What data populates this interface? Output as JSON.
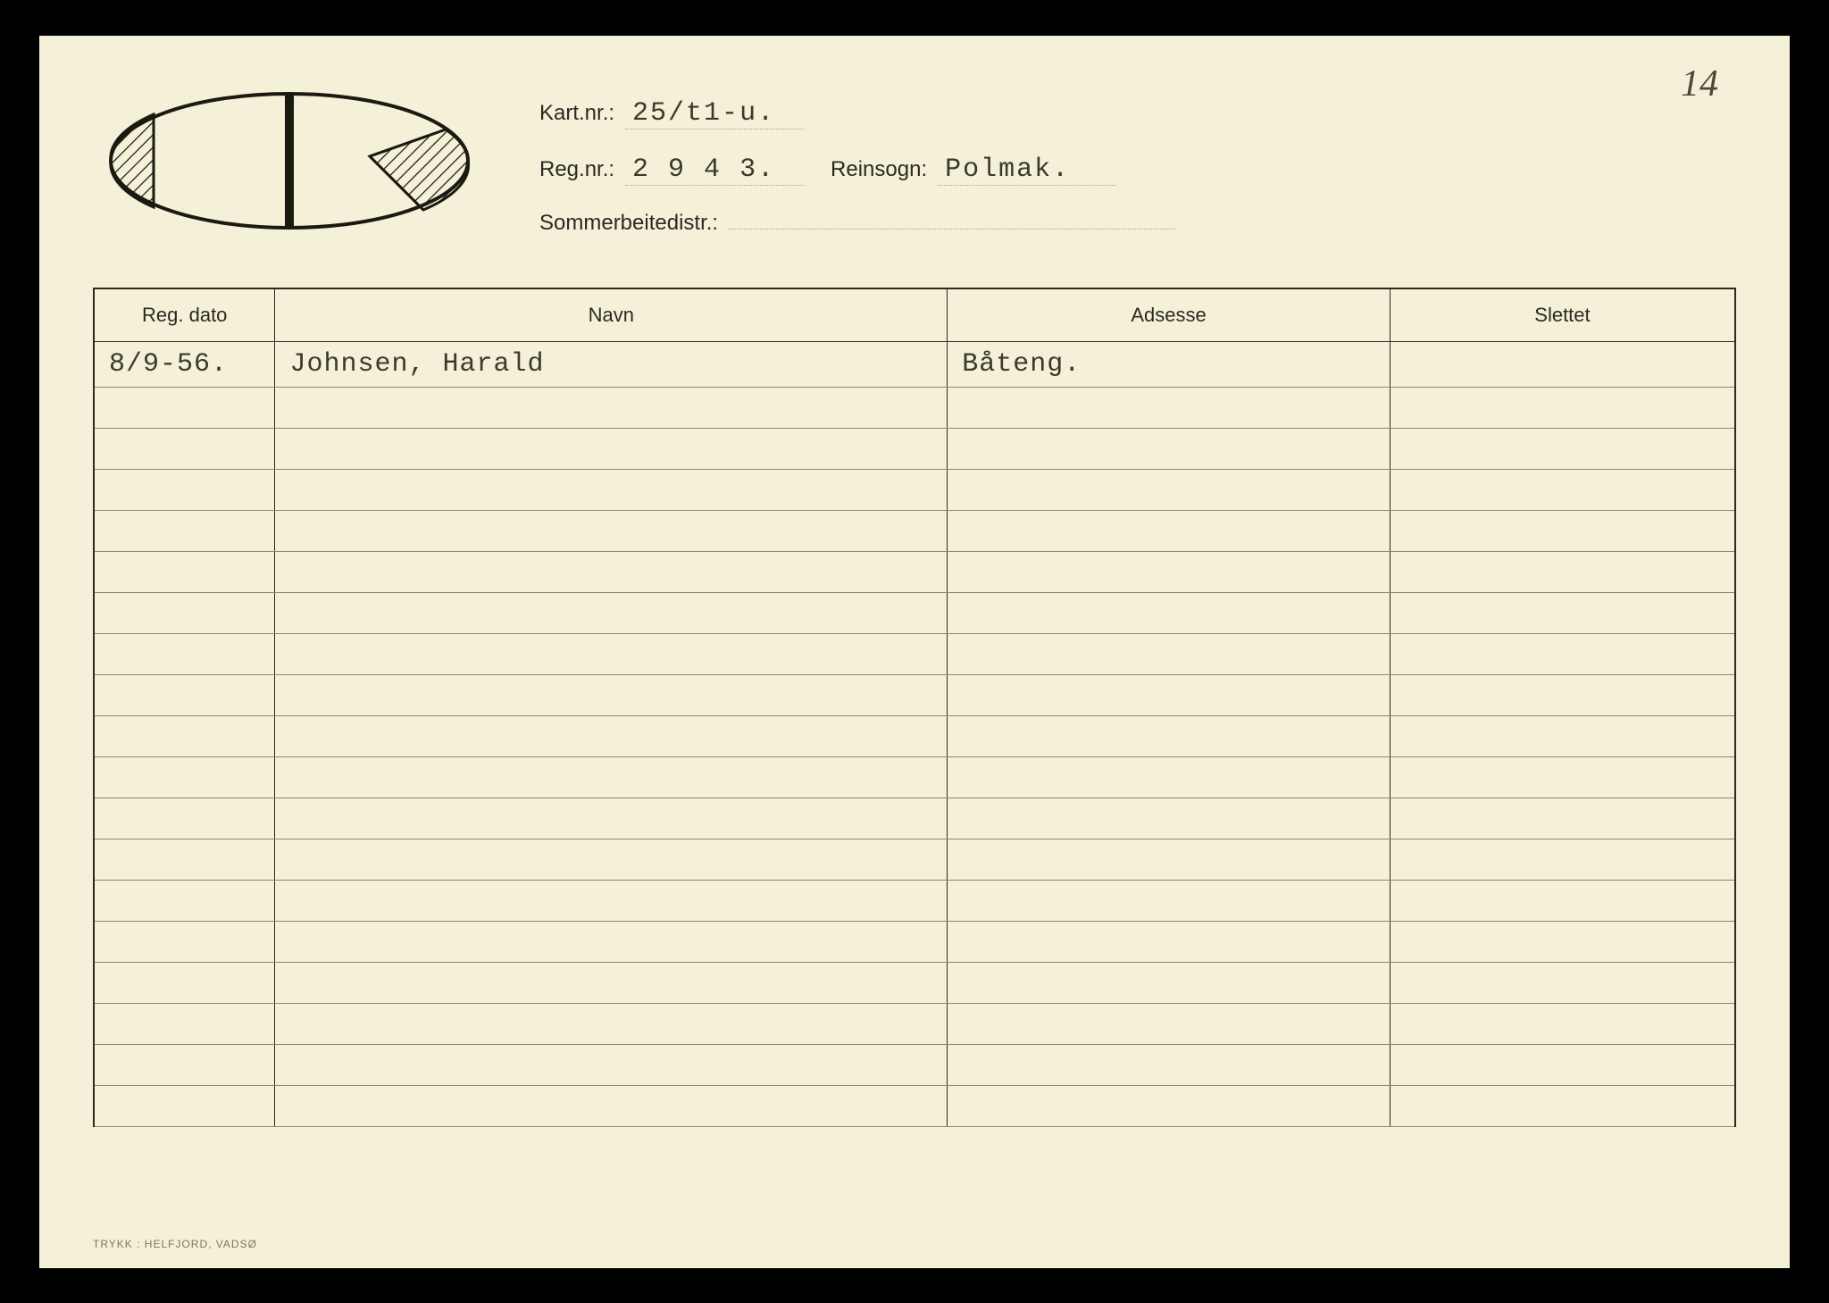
{
  "page_number": "14",
  "header": {
    "kart_nr_label": "Kart.nr.:",
    "kart_nr_value": "25/t1-u.",
    "reg_nr_label": "Reg.nr.:",
    "reg_nr_value": "2 9 4 3.",
    "reinsogn_label": "Reinsogn:",
    "reinsogn_value": "Polmak.",
    "sommerbeitedistr_label": "Sommerbeitedistr.:",
    "sommerbeitedistr_value": ""
  },
  "table": {
    "columns": [
      "Reg. dato",
      "Navn",
      "Adsesse",
      "Slettet"
    ],
    "column_widths_pct": [
      11,
      41,
      27,
      21
    ],
    "rows": [
      [
        "8/9-56.",
        "Johnsen, Harald",
        "Båteng.",
        ""
      ],
      [
        "",
        "",
        "",
        ""
      ],
      [
        "",
        "",
        "",
        ""
      ],
      [
        "",
        "",
        "",
        ""
      ],
      [
        "",
        "",
        "",
        ""
      ],
      [
        "",
        "",
        "",
        ""
      ],
      [
        "",
        "",
        "",
        ""
      ],
      [
        "",
        "",
        "",
        ""
      ],
      [
        "",
        "",
        "",
        ""
      ],
      [
        "",
        "",
        "",
        ""
      ],
      [
        "",
        "",
        "",
        ""
      ],
      [
        "",
        "",
        "",
        ""
      ],
      [
        "",
        "",
        "",
        ""
      ],
      [
        "",
        "",
        "",
        ""
      ],
      [
        "",
        "",
        "",
        ""
      ],
      [
        "",
        "",
        "",
        ""
      ],
      [
        "",
        "",
        "",
        ""
      ],
      [
        "",
        "",
        "",
        ""
      ],
      [
        "",
        "",
        "",
        ""
      ]
    ]
  },
  "colors": {
    "page_background": "#000000",
    "card_background": "#f5f0d8",
    "text_color": "#2a2a20",
    "typed_text_color": "#3a3a2a",
    "rule_line_color": "#888870",
    "border_color": "#2a2a20",
    "dotted_line_color": "#aaa890"
  },
  "typography": {
    "label_font": "Arial, sans-serif",
    "label_fontsize_pt": 18,
    "value_font": "Courier New, monospace",
    "value_fontsize_pt": 22,
    "header_cell_fontsize_pt": 16,
    "page_number_fontsize_pt": 32
  },
  "earmark": {
    "type": "diagram",
    "stroke_color": "#1a1a10",
    "stroke_width": 3,
    "fill_color": "none",
    "hatch_pattern": "diagonal-lines",
    "description": "ellipse split vertically, left tip hatched, right side has triangular notch with hatching"
  },
  "footer": {
    "print_text": "TRYKK : HELFJORD, VADSØ"
  }
}
